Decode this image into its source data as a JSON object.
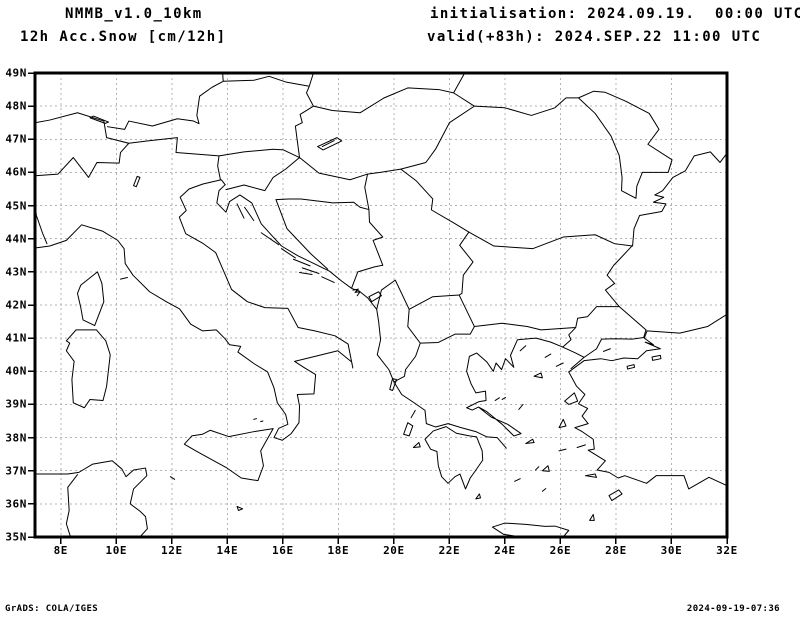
{
  "header": {
    "model_title": "NMMB_v1.0_10km",
    "field_title": "12h Acc.Snow [cm/12h]",
    "init_line": "initialisation: 2024.09.19.  00:00 UTC",
    "valid_line": "valid(+83h): 2024.SEP.22 11:00 UTC"
  },
  "footer": {
    "left": "GrADS: COLA/IGES",
    "right": "2024-09-19-07:36"
  },
  "axes": {
    "lat_ticks": [
      "49N",
      "48N",
      "47N",
      "46N",
      "45N",
      "44N",
      "43N",
      "42N",
      "41N",
      "40N",
      "39N",
      "38N",
      "37N",
      "36N",
      "35N"
    ],
    "lon_ticks": [
      "8E",
      "10E",
      "12E",
      "14E",
      "16E",
      "18E",
      "20E",
      "22E",
      "24E",
      "26E",
      "28E",
      "30E",
      "32E"
    ],
    "lat_range": [
      35,
      49
    ],
    "lon_range": [
      7.07,
      32
    ],
    "grid_lat_step_deg": 1,
    "grid_lon_step_deg": 2
  },
  "colors": {
    "background": "#ffffff",
    "map_lines": "#000000",
    "grid_lines": "#b3b3b3",
    "frame": "#000000",
    "text": "#000000"
  }
}
